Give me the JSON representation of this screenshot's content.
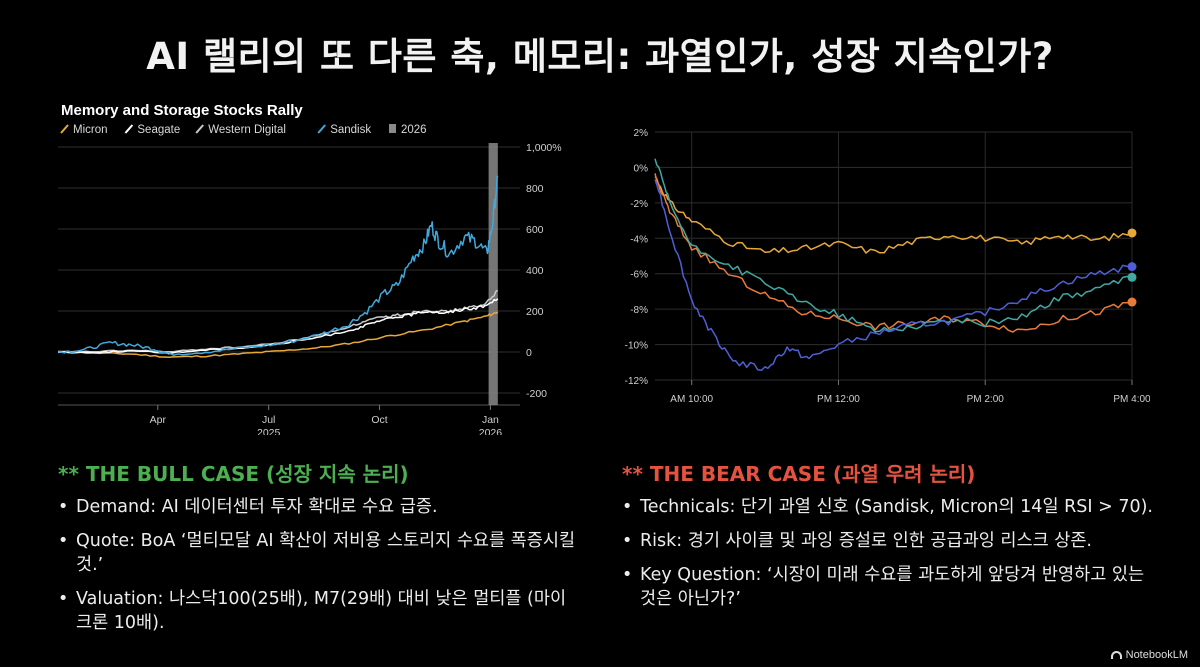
{
  "header": {
    "title": "AI 랠리의 또 다른 축, 메모리: 과열인가, 성장 지속인가?"
  },
  "chart_data": [
    {
      "type": "line",
      "title": "Memory and Storage Stocks Rally",
      "legend": [
        "Micron",
        "Seagate",
        "Western Digital",
        "Sandisk",
        "2026"
      ],
      "yticks": [
        "1,000%",
        "800",
        "600",
        "400",
        "200",
        "0",
        "-200"
      ],
      "xticks": [
        "Apr",
        "Jul",
        "Oct",
        "Jan"
      ],
      "xticks_sub": [
        "",
        "2025",
        "",
        "2026"
      ],
      "ylim": [
        -200,
        1000
      ],
      "x_range": [
        0,
        12.5
      ],
      "x_tick_positions": [
        2.7,
        5.7,
        8.7,
        11.7
      ],
      "shade_x": [
        11.65,
        11.9
      ],
      "colors": {
        "Micron": "#e8a838",
        "Seagate": "#ffffff",
        "Western Digital": "#c9c9c9",
        "Sandisk": "#3fa9dd",
        "2026": "#8a8a8a"
      },
      "series": [
        {
          "name": "Micron",
          "x": [
            0,
            1,
            2,
            3,
            4,
            5,
            6,
            7,
            8,
            9,
            10,
            11,
            11.6,
            11.9
          ],
          "values": [
            0,
            -5,
            -10,
            -25,
            -20,
            -8,
            5,
            20,
            45,
            80,
            110,
            150,
            175,
            195
          ]
        },
        {
          "name": "Seagate",
          "x": [
            0,
            1,
            2,
            3,
            4,
            5,
            6,
            7,
            8,
            8.5,
            9,
            9.5,
            10,
            10.5,
            11,
            11.5,
            11.9
          ],
          "values": [
            0,
            -2,
            5,
            -5,
            10,
            20,
            40,
            70,
            110,
            140,
            165,
            180,
            200,
            190,
            210,
            220,
            260
          ]
        },
        {
          "name": "Western Digital",
          "x": [
            0,
            1,
            2,
            3,
            4,
            5,
            6,
            7,
            8,
            8.5,
            9,
            9.5,
            10,
            10.5,
            11,
            11.5,
            11.9
          ],
          "values": [
            0,
            2,
            8,
            0,
            15,
            25,
            45,
            80,
            130,
            160,
            175,
            190,
            205,
            195,
            215,
            225,
            300
          ]
        },
        {
          "name": "Sandisk",
          "x": [
            0,
            0.7,
            1.4,
            2,
            2.6,
            3,
            4,
            5,
            6,
            7,
            7.8,
            8.3,
            8.8,
            9.2,
            9.6,
            9.9,
            10.1,
            10.3,
            10.6,
            11,
            11.3,
            11.6,
            11.75,
            11.9
          ],
          "values": [
            0,
            10,
            45,
            35,
            15,
            -10,
            0,
            20,
            40,
            80,
            130,
            190,
            280,
            330,
            460,
            520,
            620,
            540,
            480,
            560,
            540,
            480,
            620,
            860
          ]
        }
      ]
    },
    {
      "type": "line",
      "yticks": [
        "2%",
        "0%",
        "-2%",
        "-4%",
        "-6%",
        "-8%",
        "-10%",
        "-12%"
      ],
      "ylim": [
        -12,
        2
      ],
      "xticks": [
        "AM 10:00",
        "PM 12:00",
        "PM 2:00",
        "PM 4:00"
      ],
      "x_range": [
        9.5,
        16
      ],
      "x_tick_positions": [
        10,
        12,
        14,
        16
      ],
      "series": [
        {
          "color": "#e8a838",
          "x": [
            9.5,
            9.7,
            10,
            10.5,
            11,
            11.5,
            12,
            12.5,
            13,
            13.5,
            14,
            14.5,
            15,
            15.5,
            16
          ],
          "values": [
            -0.5,
            -2,
            -3,
            -4.2,
            -4.8,
            -4.6,
            -4.3,
            -4.8,
            -4.2,
            -3.8,
            -4,
            -4.3,
            -3.8,
            -4.1,
            -3.7
          ]
        },
        {
          "color": "#e87a3a",
          "x": [
            9.5,
            9.7,
            10,
            10.5,
            11,
            11.5,
            12,
            12.5,
            13,
            13.5,
            14,
            14.5,
            15,
            15.5,
            16
          ],
          "values": [
            -0.5,
            -2.5,
            -4.5,
            -6,
            -7.2,
            -8.2,
            -8.5,
            -9,
            -8.8,
            -8.5,
            -8.8,
            -9.2,
            -8.6,
            -8.2,
            -7.6
          ]
        },
        {
          "color": "#3fa9a3",
          "x": [
            9.5,
            9.7,
            10,
            10.5,
            11,
            11.5,
            12,
            12.5,
            13,
            13.5,
            14,
            14.5,
            15,
            15.5,
            16
          ],
          "values": [
            0.5,
            -2,
            -4.5,
            -5.5,
            -6.5,
            -7.6,
            -8.3,
            -9.2,
            -9,
            -8.6,
            -8.8,
            -8.4,
            -7.4,
            -6.9,
            -6.2
          ]
        },
        {
          "color": "#4e5fd6",
          "x": [
            9.5,
            9.7,
            10,
            10.3,
            10.6,
            11,
            11.3,
            11.6,
            12,
            12.5,
            13,
            13.5,
            14,
            14.5,
            15,
            15.5,
            16
          ],
          "values": [
            -0.5,
            -3.5,
            -7.5,
            -9.5,
            -11,
            -11.4,
            -10.2,
            -10.8,
            -10,
            -9.4,
            -8.9,
            -8.7,
            -8.2,
            -7.4,
            -6.6,
            -6,
            -5.6
          ]
        }
      ]
    }
  ],
  "bull": {
    "title": "** THE BULL CASE (성장 지속 논리)",
    "items": [
      "Demand: AI 데이터센터 투자 확대로 수요 급증.",
      "Quote: BoA ‘멀티모달 AI 확산이 저비용 스토리지 수요를 폭증시킬 것.’",
      "Valuation: 나스닥100(25배), M7(29배) 대비 낮은 멀티플 (마이크론 10배)."
    ]
  },
  "bear": {
    "title": "** THE BEAR CASE (과열 우려 논리)",
    "items": [
      "Technicals: 단기 과열 신호 (Sandisk, Micron의 14일 RSI > 70).",
      "Risk: 경기 사이클 및 과잉 증설로 인한 공급과잉 리스크 상존.",
      "Key Question: ‘시장이 미래 수요를 과도하게 앞당겨 반영하고 있는 것은 아닌가?’"
    ]
  },
  "watermark": {
    "label": "NotebookLM",
    "icon": "notebooklm-icon"
  }
}
